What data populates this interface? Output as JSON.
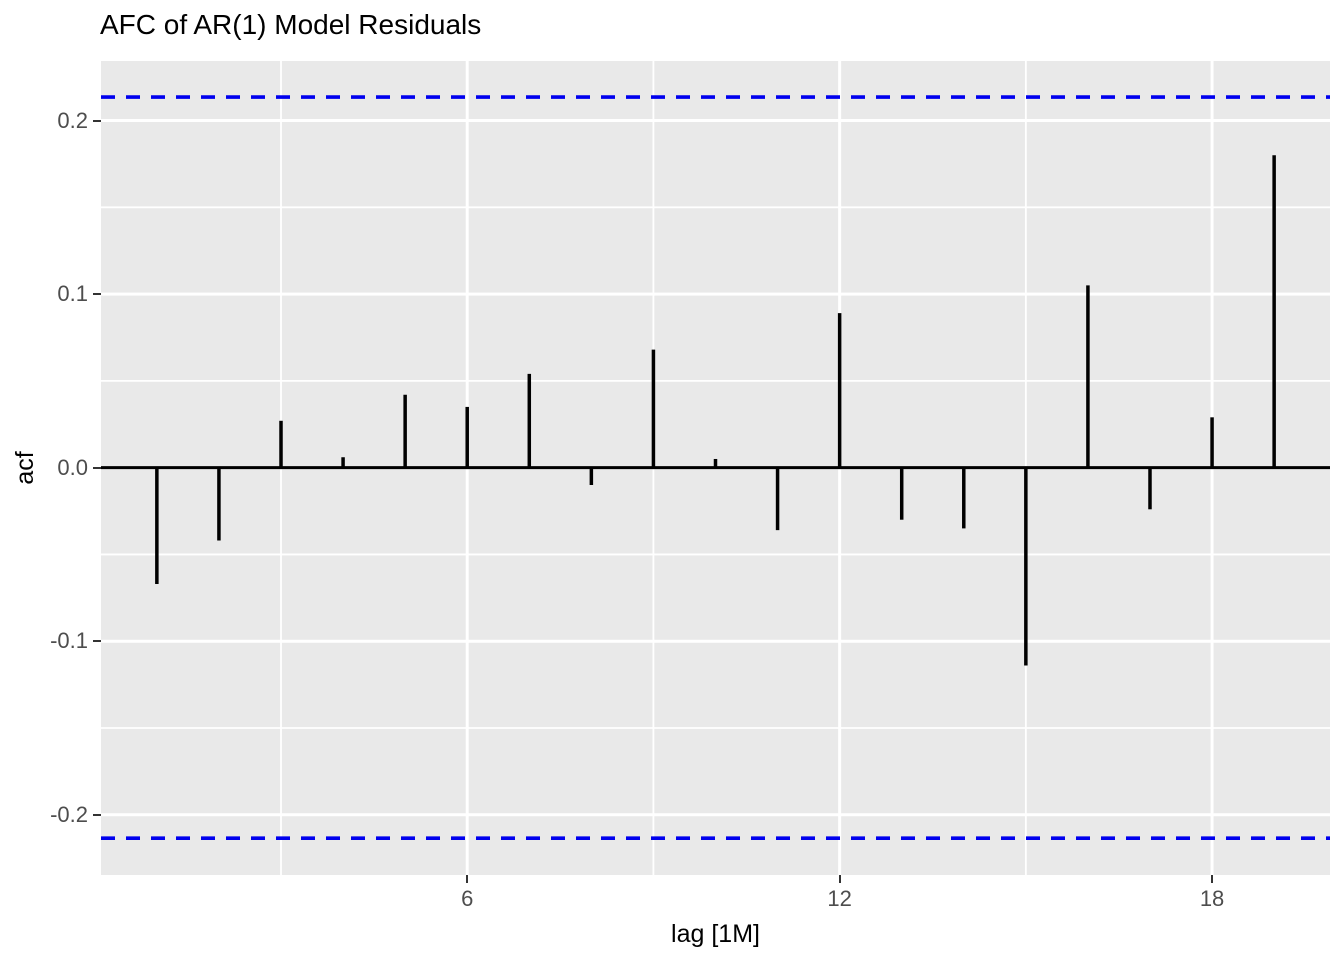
{
  "chart_data": {
    "type": "bar",
    "variant": "acf-lollipop",
    "title": "AFC of AR(1) Model Residuals",
    "xlabel": "lag [1M]",
    "ylabel": "acf",
    "x": [
      1,
      2,
      3,
      4,
      5,
      6,
      7,
      8,
      9,
      10,
      11,
      12,
      13,
      14,
      15,
      16,
      17,
      18,
      19
    ],
    "values": [
      -0.067,
      -0.042,
      0.027,
      0.006,
      0.042,
      0.035,
      0.054,
      -0.01,
      0.068,
      0.005,
      -0.036,
      0.089,
      -0.03,
      -0.035,
      -0.114,
      0.105,
      -0.024,
      0.029,
      0.18
    ],
    "ci_bounds": [
      -0.2135,
      0.2135
    ],
    "xlim": [
      0.1,
      19.9
    ],
    "ylim": [
      -0.2347,
      0.2343
    ],
    "x_tick_labels": [
      "6",
      "12",
      "18"
    ],
    "x_tick_values": [
      6,
      12,
      18
    ],
    "x_minor_gridlines": [
      3,
      9,
      15
    ],
    "y_tick_labels": [
      "0.2",
      "0.1",
      "0.0",
      "-0.1",
      "-0.2"
    ],
    "y_tick_values": [
      0.2,
      0.1,
      0.0,
      -0.1,
      -0.2
    ],
    "y_minor_gridlines": [
      0.15,
      0.05,
      -0.05,
      -0.15
    ],
    "grid": true,
    "legend": false,
    "colors": {
      "panel_background": "#E9E9E9",
      "gridline": "#FFFFFF",
      "bar": "#000000",
      "zero_line": "#000000",
      "ci_line": "#0000EE",
      "axis_text": "#4D4D4D",
      "tick_mark": "#333333",
      "title_text": "#000000"
    }
  }
}
